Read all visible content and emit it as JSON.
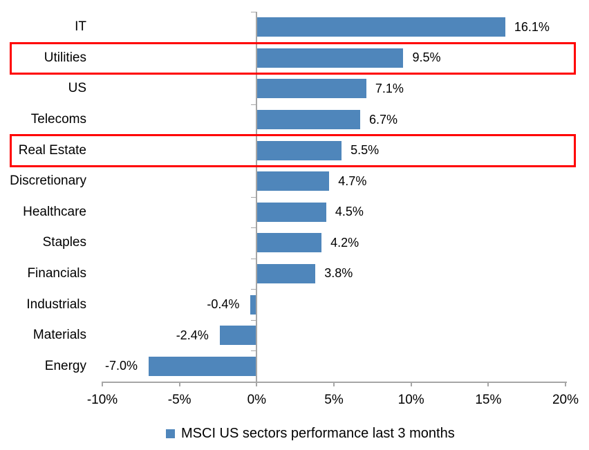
{
  "chart_data": {
    "type": "bar",
    "orientation": "horizontal",
    "title": "",
    "categories": [
      "IT",
      "Utilities",
      "US",
      "Telecoms",
      "Real Estate",
      "Discretionary",
      "Healthcare",
      "Staples",
      "Financials",
      "Industrials",
      "Materials",
      "Energy"
    ],
    "values": [
      16.1,
      9.5,
      7.1,
      6.7,
      5.5,
      4.7,
      4.5,
      4.2,
      3.8,
      -0.4,
      -2.4,
      -7.0
    ],
    "value_labels": [
      "16.1%",
      "9.5%",
      "7.1%",
      "6.7%",
      "5.5%",
      "4.7%",
      "4.5%",
      "4.2%",
      "3.8%",
      "-0.4%",
      "-2.4%",
      "-7.0%"
    ],
    "highlighted_categories": [
      "Utilities",
      "Real Estate"
    ],
    "x_axis": {
      "range": [
        -10,
        20
      ],
      "ticks": [
        -10,
        -5,
        0,
        5,
        10,
        15,
        20
      ],
      "tick_labels": [
        "-10%",
        "-5%",
        "0%",
        "5%",
        "10%",
        "15%",
        "20%"
      ]
    },
    "grid": false,
    "legend": {
      "label": "MSCI US sectors performance last 3 months",
      "position": "bottom"
    },
    "colors": {
      "bar": "#4f86bb",
      "axis": "#a6a6a6",
      "highlight_box": "#ff0000",
      "text": "#000000"
    }
  }
}
